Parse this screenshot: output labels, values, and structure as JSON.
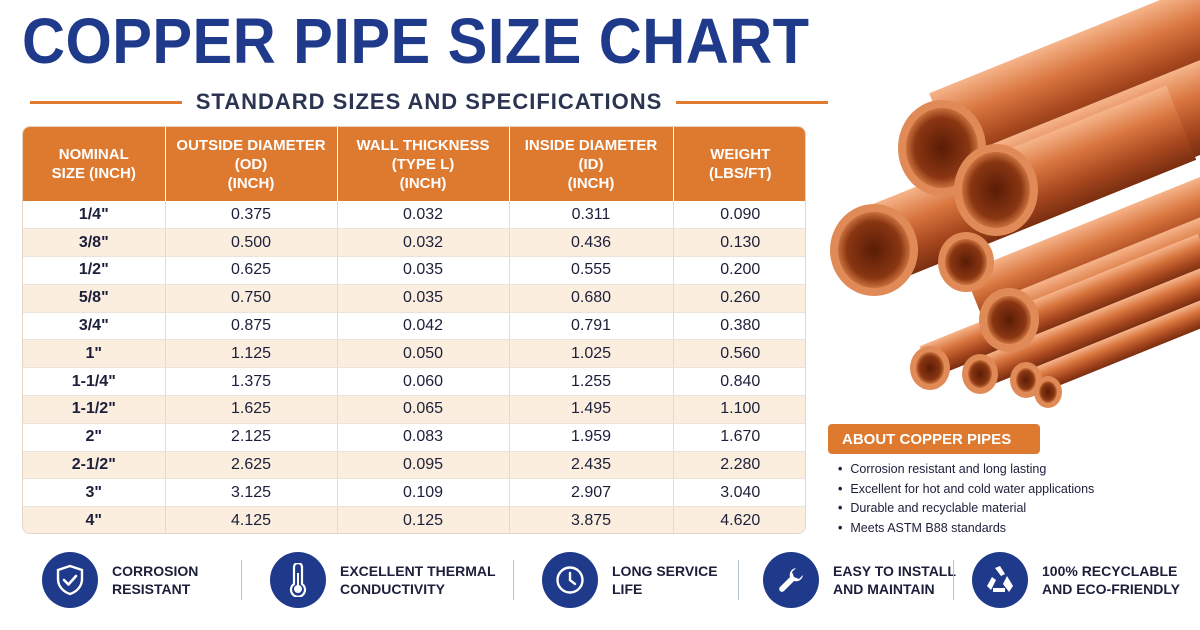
{
  "title": "COPPER PIPE SIZE CHART",
  "subtitle": "STANDARD SIZES AND SPECIFICATIONS",
  "table": {
    "headers": [
      [
        "NOMINAL",
        "SIZE (INCH)"
      ],
      [
        "OUTSIDE DIAMETER",
        "(OD)",
        "(INCH)"
      ],
      [
        "WALL THICKNESS",
        "(TYPE L)",
        "(INCH)"
      ],
      [
        "INSIDE DIAMETER",
        "(ID)",
        "(INCH)"
      ],
      [
        "WEIGHT",
        "(LBS/FT)"
      ]
    ],
    "rows": [
      [
        "1/4\"",
        "0.375",
        "0.032",
        "0.311",
        "0.090"
      ],
      [
        "3/8\"",
        "0.500",
        "0.032",
        "0.436",
        "0.130"
      ],
      [
        "1/2\"",
        "0.625",
        "0.035",
        "0.555",
        "0.200"
      ],
      [
        "5/8\"",
        "0.750",
        "0.035",
        "0.680",
        "0.260"
      ],
      [
        "3/4\"",
        "0.875",
        "0.042",
        "0.791",
        "0.380"
      ],
      [
        "1\"",
        "1.125",
        "0.050",
        "1.025",
        "0.560"
      ],
      [
        "1-1/4\"",
        "1.375",
        "0.060",
        "1.255",
        "0.840"
      ],
      [
        "1-1/2\"",
        "1.625",
        "0.065",
        "1.495",
        "1.100"
      ],
      [
        "2\"",
        "2.125",
        "0.083",
        "1.959",
        "1.670"
      ],
      [
        "2-1/2\"",
        "2.625",
        "0.095",
        "2.435",
        "2.280"
      ],
      [
        "3\"",
        "3.125",
        "0.109",
        "2.907",
        "3.040"
      ],
      [
        "4\"",
        "4.125",
        "0.125",
        "3.875",
        "4.620"
      ]
    ]
  },
  "about": {
    "heading": "ABOUT COPPER PIPES",
    "bullet": "•",
    "items": [
      "Corrosion resistant and long lasting",
      "Excellent for hot and cold water applications",
      "Durable and recyclable material",
      "Meets ASTM B88 standards"
    ]
  },
  "features": [
    {
      "icon": "shield-check-icon",
      "line1": "CORROSION",
      "line2": "RESISTANT"
    },
    {
      "icon": "thermometer-icon",
      "line1": "EXCELLENT THERMAL",
      "line2": "CONDUCTIVITY"
    },
    {
      "icon": "clock-icon",
      "line1": "LONG SERVICE",
      "line2": "LIFE"
    },
    {
      "icon": "wrench-icon",
      "line1": "EASY TO INSTALL",
      "line2": "AND MAINTAIN"
    },
    {
      "icon": "recycle-icon",
      "line1": "100% RECYCLABLE",
      "line2": "AND ECO-FRIENDLY"
    }
  ],
  "colors": {
    "title_blue": "#1f3a8a",
    "accent_orange": "#de7a30",
    "row_alt": "#fbeedf",
    "copper": "#c8653a"
  }
}
